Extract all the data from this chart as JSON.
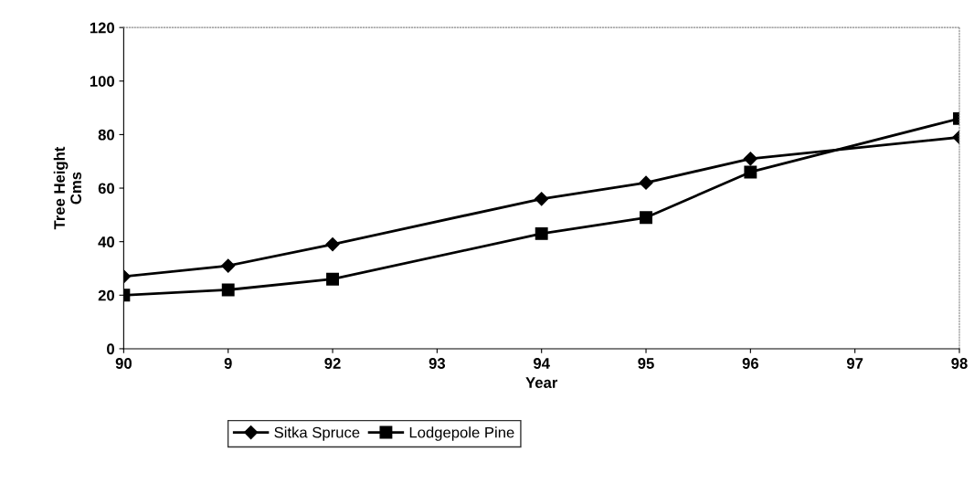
{
  "chart_data": {
    "type": "line",
    "xlabel": "Year",
    "ylabel": "Tree Height\nCms",
    "categories": [
      "90",
      "9",
      "92",
      "93",
      "94",
      "95",
      "96",
      "97",
      "98"
    ],
    "series": [
      {
        "name": "Sitka Spruce",
        "color": "#000000",
        "marker": "diamond",
        "values": [
          27,
          31,
          39,
          null,
          56,
          62,
          71,
          null,
          79
        ]
      },
      {
        "name": "Lodgepole Pine",
        "color": "#000000",
        "marker": "square",
        "values": [
          20,
          22,
          26,
          null,
          43,
          49,
          66,
          null,
          86
        ]
      }
    ],
    "ylim": [
      0,
      120
    ],
    "yticks": [
      0,
      20,
      40,
      60,
      80,
      100,
      120
    ],
    "grid": false,
    "legend": "bottom",
    "line_style": "solid"
  }
}
